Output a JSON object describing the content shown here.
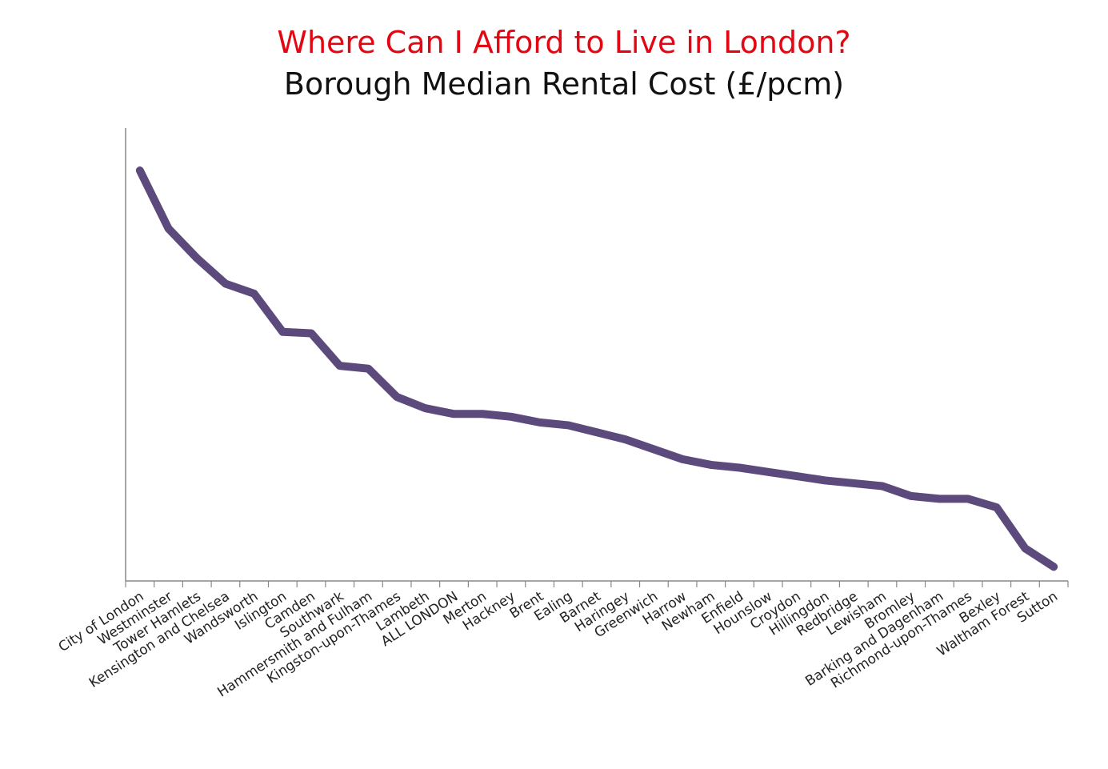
{
  "chart_data": {
    "type": "line",
    "title": "Where Can I Afford to Live in London?",
    "subtitle": "Borough Median Rental Cost (£/pcm)",
    "categories": [
      "City of London",
      "Westminster",
      "Tower Hamlets",
      "Kensington and Chelsea",
      "Wandsworth",
      "Islington",
      "Camden",
      "Southwark",
      "Hammersmith and Fulham",
      "Kingston-upon-Thames",
      "Lambeth",
      "ALL LONDON",
      "Merton",
      "Hackney",
      "Brent",
      "Ealing",
      "Barnet",
      "Haringey",
      "Greenwich",
      "Harrow",
      "Newham",
      "Enfield",
      "Hounslow",
      "Croydon",
      "Hillingdon",
      "Redbridge",
      "Lewisham",
      "Bromley",
      "Barking and Dagenham",
      "Richmond-upon-Thames",
      "Bexley",
      "Waltham Forest",
      "Sutton"
    ],
    "values": [
      2350,
      2145,
      2040,
      1950,
      1915,
      1780,
      1775,
      1660,
      1650,
      1550,
      1510,
      1490,
      1490,
      1480,
      1460,
      1450,
      1425,
      1400,
      1365,
      1330,
      1310,
      1300,
      1285,
      1270,
      1255,
      1245,
      1235,
      1200,
      1190,
      1190,
      1160,
      1015,
      950
    ],
    "color": "#5c4a7d",
    "title_color": "#e30613",
    "ylim": [
      900,
      2500
    ]
  }
}
